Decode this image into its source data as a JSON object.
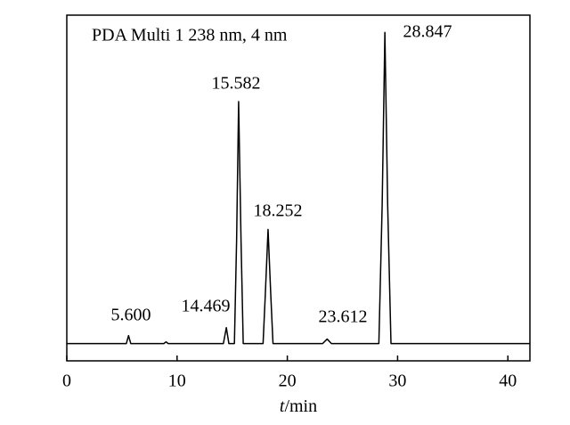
{
  "chart_data": {
    "type": "line",
    "legend_text": "PDA Multi 1 238 nm, 4 nm",
    "x_label": "t/min",
    "annotations": [
      "5.600",
      "14.469",
      "15.582",
      "18.252",
      "23.612",
      "28.847"
    ],
    "series": [
      {
        "color": "#000000",
        "x": [
          0,
          5.4,
          5.6,
          5.8,
          8.8,
          9.0,
          9.2,
          14.2,
          14.469,
          14.7,
          15.2,
          15.4,
          15.582,
          15.8,
          16.0,
          17.8,
          18.0,
          18.252,
          18.5,
          18.7,
          23.2,
          23.612,
          24.0,
          28.3,
          28.6,
          28.847,
          29.1,
          29.4,
          42
        ],
        "values": [
          0,
          0,
          2.3,
          0,
          0,
          0.5,
          0,
          0,
          4.6,
          0,
          0,
          30,
          70,
          30,
          0,
          0,
          14,
          33,
          14,
          0,
          0,
          1.3,
          0,
          0,
          40,
          90,
          40,
          0,
          0
        ]
      }
    ],
    "xlim": [
      0,
      42
    ],
    "xticks": [
      0,
      10,
      20,
      30,
      40
    ],
    "ylim": [
      -5,
      95
    ]
  }
}
